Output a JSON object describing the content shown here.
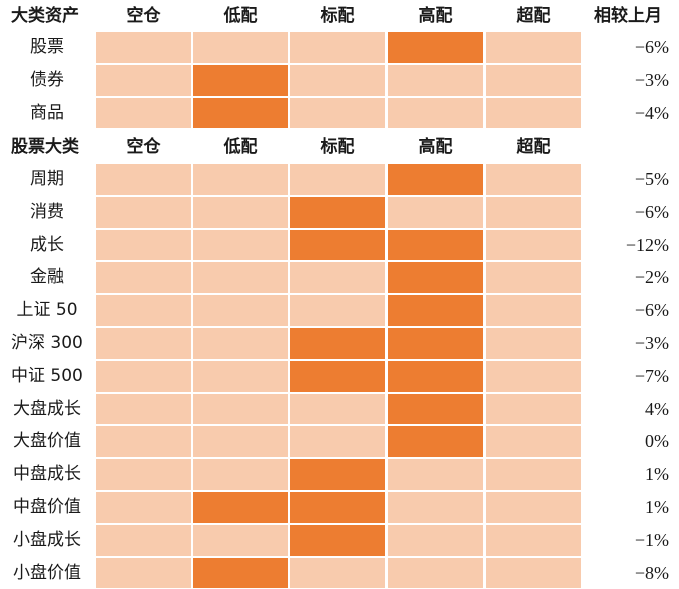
{
  "section1": {
    "headers": [
      "大类资产",
      "空仓",
      "低配",
      "标配",
      "高配",
      "超配",
      "相较上月"
    ],
    "rows": [
      {
        "label": "股票",
        "level": 3,
        "change": "−6%"
      },
      {
        "label": "债券",
        "level": 1,
        "change": "−3%"
      },
      {
        "label": "商品",
        "level": 1,
        "change": "−4%"
      }
    ]
  },
  "section2": {
    "headers": [
      "股票大类",
      "空仓",
      "低配",
      "标配",
      "高配",
      "超配"
    ],
    "rows": [
      {
        "label": "周期",
        "levels": [
          3
        ],
        "change": "−5%"
      },
      {
        "label": "消费",
        "levels": [
          2
        ],
        "change": "−6%"
      },
      {
        "label": "成长",
        "levels": [
          2,
          3
        ],
        "change": "−12%"
      },
      {
        "label": "金融",
        "levels": [
          3
        ],
        "change": "−2%"
      },
      {
        "label": "上证 50",
        "levels": [
          3
        ],
        "change": "−6%"
      },
      {
        "label": "沪深 300",
        "levels": [
          2,
          3
        ],
        "change": "−3%"
      },
      {
        "label": "中证 500",
        "levels": [
          2,
          3
        ],
        "change": "−7%"
      },
      {
        "label": "大盘成长",
        "levels": [
          3
        ],
        "change": "4%"
      },
      {
        "label": "大盘价值",
        "levels": [
          3
        ],
        "change": "0%"
      },
      {
        "label": "中盘成长",
        "levels": [
          2
        ],
        "change": "1%"
      },
      {
        "label": "中盘价值",
        "levels": [
          1,
          2
        ],
        "change": "1%"
      },
      {
        "label": "小盘成长",
        "levels": [
          2
        ],
        "change": "−1%"
      },
      {
        "label": "小盘价值",
        "levels": [
          1
        ],
        "change": "−8%"
      }
    ]
  },
  "colors": {
    "active": "#ED7D31",
    "inactive": "#F8CBAD"
  }
}
